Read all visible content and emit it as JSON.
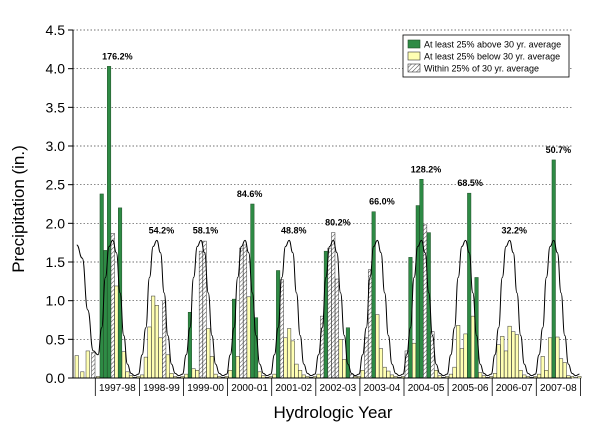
{
  "chart_data": {
    "type": "bar",
    "ylabel": "Precipitation (in.)",
    "xlabel": "Hydrologic Year",
    "ylim": [
      0,
      4.5
    ],
    "yticks": [
      "0.0",
      "0.5",
      "1.0",
      "1.5",
      "2.0",
      "2.5",
      "3.0",
      "3.5",
      "4.0",
      "4.5"
    ],
    "grid": "horizontal dotted",
    "legend_position": "top-right",
    "colors": {
      "above": "#2e8b45",
      "below": "#ffffb3",
      "within": "#ffffff",
      "bar_edge": "#1f4d26"
    },
    "legend": [
      {
        "key": "above",
        "label": "At least 25% above 30 yr. average"
      },
      {
        "key": "below",
        "label": "At least 25% below 30 yr. average"
      },
      {
        "key": "within",
        "label": "Within 25% of 30 yr. average"
      }
    ],
    "years": [
      {
        "label": "1997-98",
        "pct": "176.2%",
        "values": [
          0.02,
          2.38,
          1.65,
          4.03,
          1.87,
          1.19,
          2.2,
          0.34,
          0.08,
          0.03,
          0.01,
          0.02
        ]
      },
      {
        "label": "1998-99",
        "pct": "54.2%",
        "values": [
          0.04,
          0.27,
          0.66,
          1.06,
          0.94,
          0.52,
          1.0,
          0.3,
          0.06,
          0.02,
          0.01,
          0.02
        ]
      },
      {
        "label": "1999-00",
        "pct": "58.1%",
        "values": [
          0.05,
          0.85,
          0.12,
          0.1,
          1.64,
          1.77,
          0.64,
          0.28,
          0.05,
          0.02,
          0.01,
          0.02
        ]
      },
      {
        "label": "2000-01",
        "pct": "84.6%",
        "values": [
          0.1,
          1.02,
          0.28,
          1.68,
          1.72,
          1.05,
          2.25,
          0.78,
          0.08,
          0.03,
          0.01,
          0.02
        ]
      },
      {
        "label": "2001-02",
        "pct": "48.8%",
        "values": [
          0.05,
          1.39,
          1.27,
          0.52,
          0.64,
          0.48,
          0.18,
          0.1,
          0.04,
          0.02,
          0.01,
          0.02
        ]
      },
      {
        "label": "2002-03",
        "pct": "80.2%",
        "values": [
          0.05,
          0.8,
          1.64,
          1.68,
          1.88,
          1.28,
          0.5,
          0.24,
          0.65,
          0.05,
          0.02,
          0.02
        ]
      },
      {
        "label": "2003-04",
        "pct": "66.0%",
        "values": [
          0.1,
          0.52,
          1.4,
          2.15,
          0.82,
          0.38,
          0.14,
          0.09,
          0.04,
          0.02,
          0.01,
          0.02
        ]
      },
      {
        "label": "2004-05",
        "pct": "128.2%",
        "values": [
          0.35,
          1.56,
          0.45,
          2.23,
          2.57,
          1.98,
          1.88,
          0.6,
          0.1,
          0.03,
          0.01,
          0.02
        ]
      },
      {
        "label": "2005-06",
        "pct": "68.5%",
        "values": [
          0.05,
          0.14,
          0.68,
          0.38,
          0.57,
          2.39,
          0.8,
          1.3,
          0.07,
          0.03,
          0.01,
          0.02
        ]
      },
      {
        "label": "2006-07",
        "pct": "32.2%",
        "values": [
          0.06,
          0.43,
          0.54,
          0.35,
          0.67,
          0.6,
          0.56,
          0.1,
          0.04,
          0.02,
          0.01,
          0.02
        ]
      },
      {
        "label": "2007-08",
        "pct": "50.7%",
        "values": [
          0.05,
          0.28,
          0.1,
          0.52,
          2.82,
          0.53,
          0.25,
          0.2,
          0.03,
          0.02,
          0.01,
          0.02
        ]
      }
    ],
    "average_curve": [
      0.3,
      0.65,
      1.3,
      1.7,
      1.78,
      1.62,
      1.1,
      0.55,
      0.18,
      0.06,
      0.03,
      0.05
    ],
    "partial_leading": {
      "values": [
        0.29,
        0.08,
        0.35,
        0.33
      ],
      "avg": [
        1.72,
        1.55,
        0.88,
        0.35
      ]
    }
  }
}
